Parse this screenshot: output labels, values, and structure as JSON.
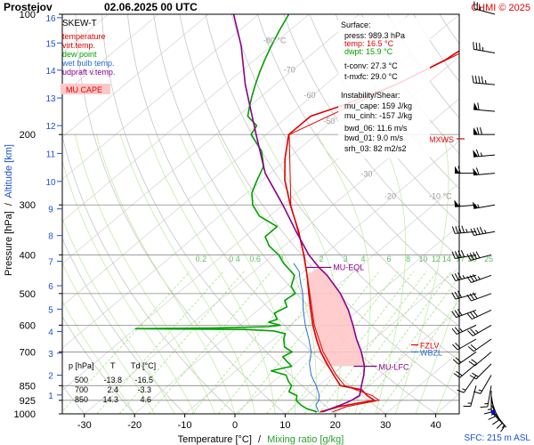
{
  "header": {
    "station": "Prostejov",
    "datetime": "02.06.2025 00 UTC",
    "copyright": "CHMI © 2025"
  },
  "colors": {
    "temperature": "#e00000",
    "virt_temp": "#e00000",
    "dew_point": "#00a000",
    "wet_bulb": "#2a6fd6",
    "udpraft_vtemp": "#8b008b",
    "mu_cape_fill": "#ffc8c8",
    "dry_adiabat": "#c0c0c0",
    "moist_adiabat": "#bfe7a0",
    "mixing_ratio": "#9be07a",
    "isotherm": "#d8d8d8",
    "barb": "#000000",
    "wbzl": "#2a6fd6",
    "mxws": "#e00000",
    "sfc_marker": "#0000ff"
  },
  "legend": {
    "title": "SKEW-T",
    "items": [
      {
        "label": "temperature",
        "color": "#e00000"
      },
      {
        "label": "virt.temp.",
        "color": "#e00000"
      },
      {
        "label": "dew point",
        "color": "#00a000"
      },
      {
        "label": "wet bulb temp.",
        "color": "#2a6fd6"
      },
      {
        "label": "udpraft v.temp.",
        "color": "#8b008b"
      }
    ],
    "cape_label": "MU CAPE"
  },
  "surface_box": {
    "title": "Surface:",
    "press": "press: 989.3 hPa",
    "temp": "temp: 16.5 °C",
    "dwpt": "dwpt: 15.9 °C",
    "tconv": "t-conv: 27.3 °C",
    "tmxfc": "t-mxfc: 29.0 °C",
    "instab_title": "Instability/Shear:",
    "mu_cape": "mu_cape: 159 J/kg",
    "mu_cinh": "mu_cinh: -157 J/kg",
    "bwd_06": "bwd_06: 11.6 m/s",
    "bwd_01": "bwd_01: 9.0 m/s",
    "srh_03": "srh_03: 82 m2/s2"
  },
  "table": {
    "headers": [
      "p [hPa]",
      "T",
      "Td [°C]"
    ],
    "rows": [
      [
        "500",
        "-13.8",
        "-16.5"
      ],
      [
        "700",
        "2.4",
        "-3.3"
      ],
      [
        "850",
        "14.3",
        "4.6"
      ]
    ]
  },
  "markers": {
    "mu_eql": "MU-EQL",
    "mu_lfc": "MU-LFC",
    "fzlv": "FZLV",
    "wbzl": "WBZL",
    "mxws": "MXWS",
    "sfc": "SFC: 215 m ASL"
  },
  "chart_data": {
    "type": "line",
    "title": "Prostejov 02.06.2025 00 UTC",
    "xlabel": "Temperature [°C] / Mixing ratio [g/kg]",
    "xlabel_temp": "Temperature [°C]",
    "xlabel_sep": "/",
    "xlabel_mix": "Mixing ratio [g/kg]",
    "ylabel": "Pressure [hPa] / Altitude [km]",
    "ylabel_pressure": "Pressure [hPa]",
    "ylabel_sep": "/",
    "ylabel_altitude": "Altitude [km]",
    "x_ticks": [
      -30,
      -20,
      -10,
      0,
      10,
      20,
      30,
      40
    ],
    "p_ticks": [
      100,
      200,
      300,
      400,
      500,
      600,
      700,
      850,
      925,
      1000
    ],
    "p_gridlines": [
      200,
      300,
      400,
      500,
      600,
      700,
      850,
      925
    ],
    "km_ticks": [
      1,
      2,
      3,
      4,
      5,
      6,
      7,
      8,
      9,
      10,
      11,
      12,
      13,
      14,
      15,
      16
    ],
    "isotherm_labels": [
      {
        "t": -80,
        "label": "-80 °C"
      },
      {
        "t": -70,
        "label": "-70"
      },
      {
        "t": -60,
        "label": "-60"
      },
      {
        "t": -50,
        "label": "-50"
      },
      {
        "t": -40,
        "label": "-40"
      },
      {
        "t": -30,
        "label": "-30"
      },
      {
        "t": -20,
        "label": "-20"
      },
      {
        "t": -10,
        "label": "-10 °C"
      }
    ],
    "mixing_ratio_values": [
      0.2,
      0.4,
      0.6,
      1,
      2,
      3,
      4,
      6,
      8,
      10,
      12,
      14,
      17,
      20,
      25
    ],
    "mixing_ratio_labels": [
      "0.2",
      "0 4",
      "0.6",
      "1",
      "2",
      "3",
      "4",
      "6",
      "8",
      "10",
      "12",
      "14",
      "17",
      "20",
      "25"
    ],
    "series": [
      {
        "name": "temperature",
        "color": "#e00000",
        "points": [
          [
            989,
            16.5
          ],
          [
            960,
            19
          ],
          [
            940,
            22
          ],
          [
            925,
            24.6
          ],
          [
            900,
            22
          ],
          [
            870,
            19.5
          ],
          [
            850,
            14.3
          ],
          [
            800,
            10.5
          ],
          [
            750,
            6.5
          ],
          [
            700,
            2.4
          ],
          [
            650,
            -1.5
          ],
          [
            600,
            -5.5
          ],
          [
            550,
            -9.5
          ],
          [
            500,
            -13.8
          ],
          [
            450,
            -18.5
          ],
          [
            400,
            -24
          ],
          [
            350,
            -30.5
          ],
          [
            300,
            -38.5
          ],
          [
            260,
            -45.5
          ],
          [
            230,
            -50.5
          ],
          [
            200,
            -55.5
          ],
          [
            180,
            -55.5
          ],
          [
            170,
            -52
          ],
          [
            160,
            -49
          ],
          [
            150,
            -46
          ],
          [
            140,
            -44
          ],
          [
            130,
            -42
          ],
          [
            120,
            -41
          ],
          [
            110,
            -36
          ],
          [
            100,
            -34
          ]
        ]
      },
      {
        "name": "virt.temp.",
        "color": "#e00000",
        "points": [
          [
            989,
            19
          ],
          [
            960,
            20.5
          ],
          [
            925,
            25.5
          ],
          [
            900,
            23
          ],
          [
            850,
            15.2
          ],
          [
            800,
            11
          ],
          [
            700,
            2.9
          ],
          [
            600,
            -5.2
          ],
          [
            500,
            -13.6
          ],
          [
            400,
            -23.9
          ],
          [
            300,
            -38.4
          ],
          [
            200,
            -55.4
          ],
          [
            150,
            -46
          ],
          [
            100,
            -34
          ]
        ]
      },
      {
        "name": "dew point",
        "color": "#00a000",
        "points": [
          [
            989,
            15.9
          ],
          [
            970,
            13
          ],
          [
            950,
            11
          ],
          [
            925,
            9
          ],
          [
            900,
            8
          ],
          [
            880,
            5.5
          ],
          [
            850,
            4.6
          ],
          [
            830,
            3
          ],
          [
            800,
            1
          ],
          [
            780,
            -3
          ],
          [
            760,
            0
          ],
          [
            740,
            -2
          ],
          [
            720,
            -4
          ],
          [
            700,
            -3.3
          ],
          [
            680,
            -6
          ],
          [
            650,
            -8
          ],
          [
            630,
            -9
          ],
          [
            620,
            -12
          ],
          [
            615,
            -18
          ],
          [
            612,
            -40
          ],
          [
            610,
            -25
          ],
          [
            605,
            -14
          ],
          [
            600,
            -12
          ],
          [
            590,
            -15
          ],
          [
            580,
            -14
          ],
          [
            560,
            -16
          ],
          [
            540,
            -15
          ],
          [
            520,
            -17
          ],
          [
            500,
            -16.5
          ],
          [
            480,
            -19
          ],
          [
            450,
            -21
          ],
          [
            420,
            -26
          ],
          [
            400,
            -29
          ],
          [
            380,
            -33
          ],
          [
            360,
            -36
          ],
          [
            340,
            -36
          ],
          [
            320,
            -42
          ],
          [
            300,
            -46
          ],
          [
            280,
            -49
          ],
          [
            260,
            -51
          ],
          [
            240,
            -53
          ],
          [
            220,
            -57
          ],
          [
            200,
            -63
          ],
          [
            190,
            -64
          ],
          [
            180,
            -68
          ],
          [
            170,
            -70
          ],
          [
            160,
            -72
          ],
          [
            150,
            -74
          ],
          [
            140,
            -76
          ],
          [
            130,
            -78
          ],
          [
            120,
            -80
          ],
          [
            110,
            -82
          ],
          [
            100,
            -84
          ]
        ]
      },
      {
        "name": "wet bulb temp.",
        "color": "#2a6fd6",
        "points": [
          [
            989,
            16.2
          ],
          [
            950,
            14
          ],
          [
            925,
            13.5
          ],
          [
            900,
            12.5
          ],
          [
            850,
            9.5
          ],
          [
            800,
            6
          ],
          [
            750,
            3
          ],
          [
            700,
            0.5
          ],
          [
            650,
            -3
          ],
          [
            600,
            -7
          ],
          [
            550,
            -11
          ],
          [
            500,
            -15
          ],
          [
            470,
            -18
          ],
          [
            440,
            -21
          ],
          [
            420,
            -24
          ]
        ]
      },
      {
        "name": "udpraft v.temp.",
        "color": "#8b008b",
        "points": [
          [
            989,
            17
          ],
          [
            950,
            19
          ],
          [
            925,
            20
          ],
          [
            900,
            20.5
          ],
          [
            850,
            18.5
          ],
          [
            800,
            16.5
          ],
          [
            760,
            14.5
          ],
          [
            700,
            10.5
          ],
          [
            650,
            6.5
          ],
          [
            600,
            2.5
          ],
          [
            550,
            -2
          ],
          [
            500,
            -7.5
          ],
          [
            450,
            -14.5
          ],
          [
            430,
            -18
          ],
          [
            400,
            -23
          ],
          [
            350,
            -31
          ],
          [
            300,
            -40
          ],
          [
            250,
            -51
          ],
          [
            200,
            -62
          ],
          [
            150,
            -76
          ],
          [
            120,
            -86
          ],
          [
            100,
            -95
          ]
        ]
      }
    ],
    "mu_cape_area": [
      [
        760,
        14.5
      ],
      [
        700,
        10.5
      ],
      [
        650,
        6.5
      ],
      [
        600,
        2.5
      ],
      [
        550,
        -2
      ],
      [
        500,
        -7.5
      ],
      [
        450,
        -14.5
      ],
      [
        430,
        -18
      ],
      [
        450,
        -18.5
      ],
      [
        500,
        -13.8
      ],
      [
        550,
        -9.5
      ],
      [
        600,
        -5.5
      ],
      [
        650,
        -1.5
      ],
      [
        700,
        2.4
      ],
      [
        760,
        6.8
      ]
    ],
    "levels": {
      "mu_eql_p": 430,
      "mu_lfc_p": 760,
      "fzlv_p": 672,
      "wbzl_p": 700,
      "mxws_p": 205
    },
    "wind_barbs": [
      {
        "p": 990,
        "dir": 135,
        "kt": 5
      },
      {
        "p": 975,
        "dir": 140,
        "kt": 8
      },
      {
        "p": 950,
        "dir": 150,
        "kt": 10
      },
      {
        "p": 925,
        "dir": 160,
        "kt": 12
      },
      {
        "p": 900,
        "dir": 170,
        "kt": 14
      },
      {
        "p": 875,
        "dir": 180,
        "kt": 14
      },
      {
        "p": 850,
        "dir": 190,
        "kt": 15
      },
      {
        "p": 800,
        "dir": 210,
        "kt": 15
      },
      {
        "p": 750,
        "dir": 225,
        "kt": 18
      },
      {
        "p": 700,
        "dir": 230,
        "kt": 20
      },
      {
        "p": 650,
        "dir": 235,
        "kt": 22
      },
      {
        "p": 600,
        "dir": 240,
        "kt": 25
      },
      {
        "p": 550,
        "dir": 245,
        "kt": 28
      },
      {
        "p": 500,
        "dir": 250,
        "kt": 30
      },
      {
        "p": 450,
        "dir": 250,
        "kt": 35
      },
      {
        "p": 400,
        "dir": 255,
        "kt": 38
      },
      {
        "p": 350,
        "dir": 260,
        "kt": 45
      },
      {
        "p": 300,
        "dir": 260,
        "kt": 55
      },
      {
        "p": 250,
        "dir": 265,
        "kt": 60
      },
      {
        "p": 225,
        "dir": 265,
        "kt": 65
      },
      {
        "p": 200,
        "dir": 270,
        "kt": 68
      },
      {
        "p": 175,
        "dir": 275,
        "kt": 60
      },
      {
        "p": 150,
        "dir": 275,
        "kt": 45
      },
      {
        "p": 125,
        "dir": 280,
        "kt": 35
      },
      {
        "p": 100,
        "dir": 285,
        "kt": 25
      }
    ]
  }
}
